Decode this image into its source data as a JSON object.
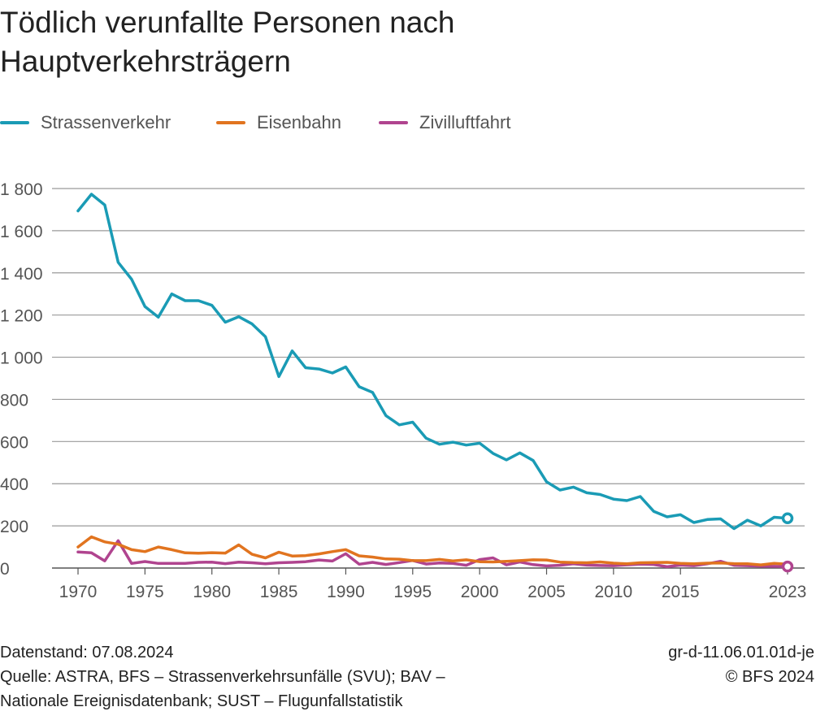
{
  "title_lines": [
    "Tödlich verunfallte Personen nach",
    "Hauptverkehrsträgern"
  ],
  "legend": [
    {
      "label": "Strassenverkehr",
      "color": "#1a9bb5"
    },
    {
      "label": "Eisenbahn",
      "color": "#e1741f"
    },
    {
      "label": "Zivilluftfahrt",
      "color": "#b0448f"
    }
  ],
  "chart_data": {
    "type": "line",
    "title": "Tödlich verunfallte Personen nach Hauptverkehrsträgern",
    "xlabel": "",
    "ylabel": "",
    "ylim": [
      0,
      1800
    ],
    "yticks": [
      0,
      200,
      400,
      600,
      800,
      1000,
      1200,
      1400,
      1600,
      1800
    ],
    "ytick_labels": [
      "0",
      "200",
      "400",
      "600",
      "800",
      "1 000",
      "1 200",
      "1 400",
      "1 600",
      "1 800"
    ],
    "xticks": [
      1970,
      1975,
      1980,
      1985,
      1990,
      1995,
      2000,
      2005,
      2010,
      2015,
      2023
    ],
    "xtick_labels": [
      "1970",
      "1975",
      "1980",
      "1985",
      "1990",
      "1995",
      "2000",
      "2005",
      "2010",
      "2015",
      "2023"
    ],
    "grid": true,
    "x": [
      1970,
      1971,
      1972,
      1973,
      1974,
      1975,
      1976,
      1977,
      1978,
      1979,
      1980,
      1981,
      1982,
      1983,
      1984,
      1985,
      1986,
      1987,
      1988,
      1989,
      1990,
      1991,
      1992,
      1993,
      1994,
      1995,
      1996,
      1997,
      1998,
      1999,
      2000,
      2001,
      2002,
      2003,
      2004,
      2005,
      2006,
      2007,
      2008,
      2009,
      2010,
      2011,
      2012,
      2013,
      2014,
      2015,
      2016,
      2017,
      2018,
      2019,
      2020,
      2021,
      2022,
      2023
    ],
    "series": [
      {
        "name": "Strassenverkehr",
        "color": "#1a9bb5",
        "values": [
          1694,
          1773,
          1722,
          1450,
          1370,
          1240,
          1190,
          1300,
          1268,
          1268,
          1246,
          1166,
          1192,
          1158,
          1097,
          908,
          1030,
          950,
          944,
          925,
          954,
          860,
          833,
          723,
          679,
          692,
          616,
          587,
          597,
          583,
          592,
          544,
          513,
          546,
          510,
          409,
          370,
          384,
          357,
          349,
          327,
          320,
          339,
          269,
          243,
          253,
          216,
          230,
          233,
          187,
          227,
          200,
          241,
          236
        ],
        "end_marker": true
      },
      {
        "name": "Eisenbahn",
        "color": "#e1741f",
        "values": [
          100,
          148,
          124,
          113,
          87,
          78,
          100,
          87,
          72,
          70,
          73,
          71,
          110,
          65,
          48,
          75,
          57,
          59,
          67,
          78,
          87,
          58,
          52,
          43,
          42,
          35,
          35,
          41,
          34,
          39,
          30,
          29,
          32,
          35,
          39,
          38,
          28,
          26,
          25,
          29,
          23,
          20,
          25,
          26,
          27,
          22,
          20,
          23,
          24,
          21,
          20,
          15,
          22,
          18
        ],
        "end_marker": false
      },
      {
        "name": "Zivilluftfahrt",
        "color": "#b0448f",
        "values": [
          76,
          72,
          34,
          130,
          22,
          31,
          22,
          22,
          22,
          27,
          28,
          21,
          28,
          25,
          20,
          25,
          27,
          30,
          38,
          33,
          68,
          18,
          27,
          17,
          26,
          36,
          19,
          24,
          22,
          13,
          40,
          48,
          15,
          29,
          16,
          10,
          13,
          20,
          14,
          12,
          11,
          15,
          18,
          17,
          6,
          14,
          11,
          20,
          32,
          13,
          11,
          9,
          8,
          7
        ],
        "end_marker": true
      }
    ]
  },
  "footer": {
    "date_label": "Datenstand:",
    "date_value": "07.08.2024",
    "source_line1": "Quelle: ASTRA, BFS – Strassenverkehrsunfälle (SVU); BAV –",
    "source_line2": "Nationale Ereignisdatenbank; SUST – Flugunfallstatistik",
    "id": "gr-d-11.06.01.01d-je",
    "copyright": "© BFS 2024"
  }
}
